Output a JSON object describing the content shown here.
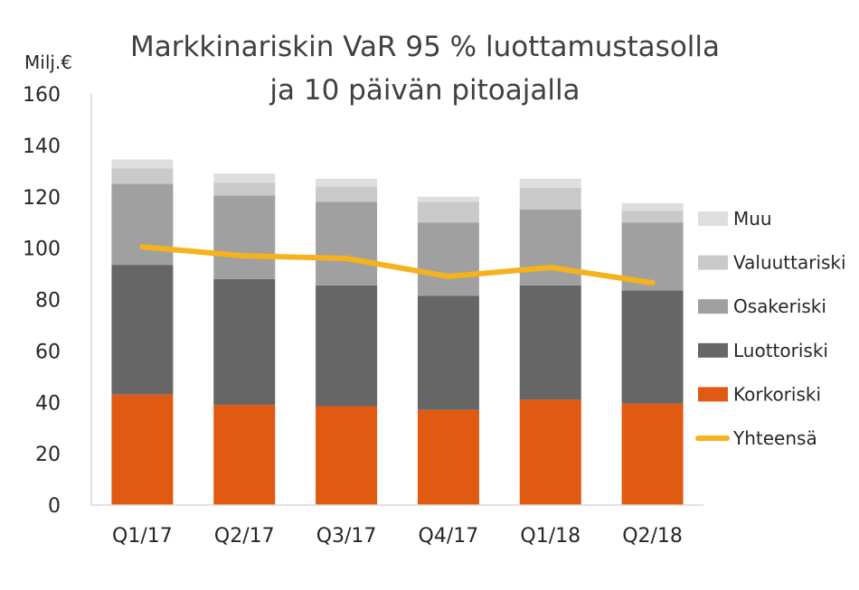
{
  "chart_data": {
    "type": "bar",
    "stacked": true,
    "title": "Markkinariskin VaR 95 % luottamustasolla",
    "subtitle": "ja 10 päivän pitoajalla",
    "ylabel": "Milj.€",
    "xlabel": "",
    "ylim": [
      0,
      160
    ],
    "yticks": [
      0,
      20,
      40,
      60,
      80,
      100,
      120,
      140,
      160
    ],
    "grid": false,
    "legend_position": "right",
    "categories": [
      "Q1/17",
      "Q2/17",
      "Q3/17",
      "Q4/17",
      "Q1/18",
      "Q2/18"
    ],
    "series": [
      {
        "name": "Korkoriski",
        "color": "#E05A12",
        "values": [
          43,
          39,
          38.5,
          37,
          41,
          39.5
        ]
      },
      {
        "name": "Luottoriski",
        "color": "#666666",
        "values": [
          50.5,
          49,
          47,
          44.5,
          44.5,
          44
        ]
      },
      {
        "name": "Osakeriski",
        "color": "#A0A0A0",
        "values": [
          31.5,
          32.5,
          32.5,
          28.5,
          29.5,
          26.5
        ]
      },
      {
        "name": "Valuuttariski",
        "color": "#C9C9C9",
        "values": [
          6,
          5,
          6,
          8,
          8.5,
          4.5
        ]
      },
      {
        "name": "Muu",
        "color": "#DEDEDE",
        "values": [
          3.5,
          3.5,
          3,
          2,
          3.5,
          3
        ]
      }
    ],
    "line_series": {
      "name": "Yhteensä",
      "color": "#F5B21D",
      "values": [
        100.5,
        97,
        96,
        89,
        92.5,
        86.5
      ]
    },
    "legend_order": [
      "Muu",
      "Valuuttariski",
      "Osakeriski",
      "Luottoriski",
      "Korkoriski",
      "Yhteensä"
    ]
  }
}
